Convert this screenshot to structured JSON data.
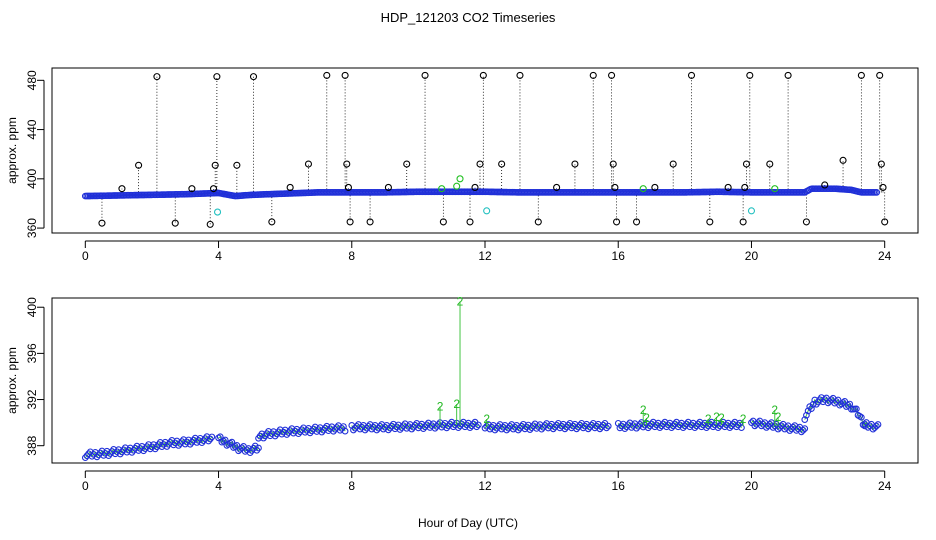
{
  "chart_data": {
    "title": "HDP_121203  CO2 Timeseries",
    "xlabel": "Hour of Day (UTC)",
    "panels": [
      {
        "id": "top",
        "type": "scatter",
        "ylabel": "approx. ppm",
        "xlim": [
          -1,
          25
        ],
        "ylim": [
          356,
          490
        ],
        "xticks": [
          0,
          4,
          8,
          12,
          16,
          20,
          24
        ],
        "yticks": [
          360,
          400,
          440,
          480
        ],
        "baseline_series": [
          {
            "name": "blue",
            "x": [
              0,
              1,
              2,
              3,
              3.5,
              4,
              4.5,
              5,
              6,
              7,
              8,
              9,
              10,
              11,
              12,
              13,
              14,
              15,
              16,
              17,
              18,
              19,
              20,
              20.5,
              21,
              21.6,
              21.8,
              22.5,
              23,
              23.3,
              23.8
            ],
            "y": [
              386,
              386.5,
              387,
              387.5,
              388,
              388.5,
              386,
              387,
              388,
              389,
              389,
              389,
              389.5,
              389.5,
              389.5,
              389,
              389,
              389,
              389,
              389,
              389,
              389.5,
              389,
              389,
              389,
              389,
              392,
              392,
              391,
              389,
              389
            ]
          }
        ],
        "outliers_black": [
          {
            "x": 0.5,
            "y": 364
          },
          {
            "x": 1.1,
            "y": 392
          },
          {
            "x": 1.6,
            "y": 411
          },
          {
            "x": 2.15,
            "y": 483
          },
          {
            "x": 2.7,
            "y": 364
          },
          {
            "x": 3.2,
            "y": 392
          },
          {
            "x": 3.75,
            "y": 363
          },
          {
            "x": 3.85,
            "y": 392
          },
          {
            "x": 3.9,
            "y": 411
          },
          {
            "x": 3.95,
            "y": 483
          },
          {
            "x": 4.55,
            "y": 411
          },
          {
            "x": 5.05,
            "y": 483
          },
          {
            "x": 5.6,
            "y": 365
          },
          {
            "x": 6.15,
            "y": 393
          },
          {
            "x": 6.7,
            "y": 412
          },
          {
            "x": 7.25,
            "y": 484
          },
          {
            "x": 7.8,
            "y": 484
          },
          {
            "x": 7.85,
            "y": 412
          },
          {
            "x": 7.9,
            "y": 393
          },
          {
            "x": 7.95,
            "y": 365
          },
          {
            "x": 8.55,
            "y": 365
          },
          {
            "x": 9.1,
            "y": 393
          },
          {
            "x": 9.65,
            "y": 412
          },
          {
            "x": 10.2,
            "y": 484
          },
          {
            "x": 10.75,
            "y": 365
          },
          {
            "x": 11.55,
            "y": 365
          },
          {
            "x": 11.7,
            "y": 393
          },
          {
            "x": 11.85,
            "y": 412
          },
          {
            "x": 11.95,
            "y": 484
          },
          {
            "x": 12.5,
            "y": 412
          },
          {
            "x": 13.05,
            "y": 484
          },
          {
            "x": 13.6,
            "y": 365
          },
          {
            "x": 14.15,
            "y": 393
          },
          {
            "x": 14.7,
            "y": 412
          },
          {
            "x": 15.25,
            "y": 484
          },
          {
            "x": 15.8,
            "y": 484
          },
          {
            "x": 15.85,
            "y": 412
          },
          {
            "x": 15.9,
            "y": 393
          },
          {
            "x": 15.95,
            "y": 365
          },
          {
            "x": 16.55,
            "y": 365
          },
          {
            "x": 17.1,
            "y": 393
          },
          {
            "x": 17.65,
            "y": 412
          },
          {
            "x": 18.2,
            "y": 484
          },
          {
            "x": 18.75,
            "y": 365
          },
          {
            "x": 19.3,
            "y": 393
          },
          {
            "x": 19.75,
            "y": 365
          },
          {
            "x": 19.8,
            "y": 393
          },
          {
            "x": 19.85,
            "y": 412
          },
          {
            "x": 19.95,
            "y": 484
          },
          {
            "x": 20.55,
            "y": 412
          },
          {
            "x": 21.1,
            "y": 484
          },
          {
            "x": 21.65,
            "y": 365
          },
          {
            "x": 22.2,
            "y": 395
          },
          {
            "x": 22.75,
            "y": 415
          },
          {
            "x": 23.3,
            "y": 484
          },
          {
            "x": 23.85,
            "y": 484
          },
          {
            "x": 23.9,
            "y": 412
          },
          {
            "x": 23.95,
            "y": 393
          },
          {
            "x": 24.0,
            "y": 365
          }
        ],
        "outliers_green": [
          {
            "x": 10.7,
            "y": 392
          },
          {
            "x": 11.25,
            "y": 400
          },
          {
            "x": 11.15,
            "y": 394
          },
          {
            "x": 16.75,
            "y": 392
          },
          {
            "x": 20.7,
            "y": 392
          }
        ],
        "outliers_cyan": [
          {
            "x": 3.97,
            "y": 373
          },
          {
            "x": 12.05,
            "y": 374
          },
          {
            "x": 20.0,
            "y": 374
          }
        ]
      },
      {
        "id": "bottom",
        "type": "scatter",
        "ylabel": "approx. ppm",
        "xlim": [
          -1,
          25
        ],
        "ylim": [
          386.5,
          400.8
        ],
        "xticks": [
          0,
          4,
          8,
          12,
          16,
          20,
          24
        ],
        "yticks": [
          388,
          392,
          396,
          400
        ],
        "segments": [
          {
            "x": [
              0,
              0.5,
              1,
              1.5,
              2,
              2.5,
              3,
              3.5,
              3.8
            ],
            "y": [
              387.2,
              387.3,
              387.5,
              387.7,
              387.9,
              388.2,
              388.3,
              388.5,
              388.6
            ]
          },
          {
            "x": [
              4.0,
              4.3,
              4.6,
              4.9,
              5.2
            ],
            "y": [
              388.6,
              388.2,
              387.8,
              387.6,
              387.8
            ]
          },
          {
            "x": [
              5.2,
              5.5,
              6,
              6.5,
              7,
              7.5,
              7.8
            ],
            "y": [
              388.8,
              389.0,
              389.2,
              389.3,
              389.4,
              389.5,
              389.5
            ]
          },
          {
            "x": [
              8.0,
              9,
              10,
              11,
              11.8
            ],
            "y": [
              389.6,
              389.6,
              389.7,
              389.8,
              389.8
            ]
          },
          {
            "x": [
              12.0,
              13,
              14,
              15,
              15.7
            ],
            "y": [
              389.6,
              389.6,
              389.7,
              389.7,
              389.7
            ]
          },
          {
            "x": [
              16.0,
              17,
              18,
              19,
              19.7
            ],
            "y": [
              389.7,
              389.8,
              389.8,
              389.8,
              389.8
            ]
          },
          {
            "x": [
              20.0,
              20.5,
              21,
              21.6
            ],
            "y": [
              390.0,
              389.8,
              389.6,
              389.4
            ]
          },
          {
            "x": [
              21.6,
              21.9,
              22.2,
              22.6,
              23.0,
              23.2,
              23.4
            ],
            "y": [
              390.5,
              391.8,
              392.0,
              391.8,
              391.4,
              390.8,
              389.8
            ]
          },
          {
            "x": [
              23.4,
              23.8
            ],
            "y": [
              389.8,
              389.6
            ]
          }
        ],
        "spikes": [
          {
            "x": 10.65,
            "y": 391.4
          },
          {
            "x": 11.15,
            "y": 391.6
          },
          {
            "x": 11.25,
            "y": 400.5
          },
          {
            "x": 12.05,
            "y": 390.3
          },
          {
            "x": 16.75,
            "y": 391.1
          },
          {
            "x": 16.85,
            "y": 390.4
          },
          {
            "x": 18.7,
            "y": 390.3
          },
          {
            "x": 18.95,
            "y": 390.5
          },
          {
            "x": 19.1,
            "y": 390.4
          },
          {
            "x": 19.75,
            "y": 390.3
          },
          {
            "x": 20.7,
            "y": 391.1
          },
          {
            "x": 20.8,
            "y": 390.5
          }
        ],
        "spike_marker": "2"
      }
    ]
  }
}
